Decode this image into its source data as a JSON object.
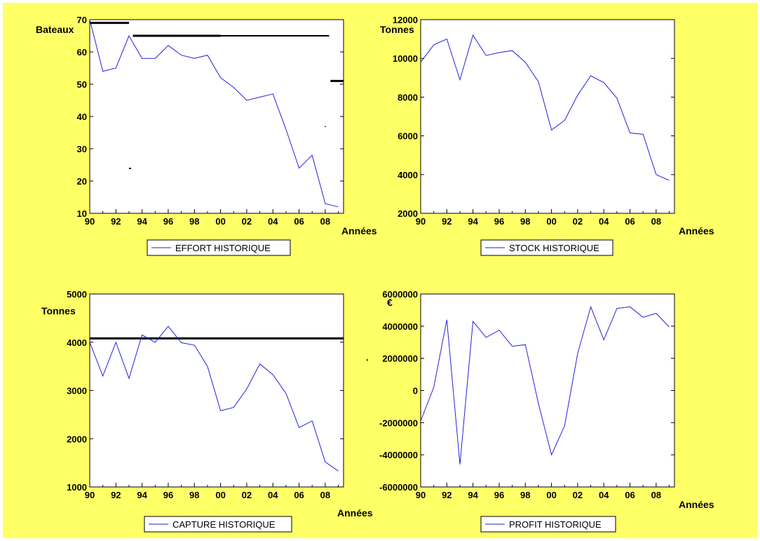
{
  "colors": {
    "background": "#ffff66",
    "plot_bg": "#ffffff",
    "series": "#2222dd",
    "frame": "#000000"
  },
  "chart_data": [
    {
      "type": "line",
      "x": [
        "1990",
        "1991",
        "1992",
        "1993",
        "1994",
        "1995",
        "1996",
        "1997",
        "1998",
        "1999",
        "2000",
        "2001",
        "2002",
        "2003",
        "2004",
        "2005",
        "2006",
        "2007",
        "2008",
        "2009"
      ],
      "xticks": [
        "90",
        "92",
        "94",
        "96",
        "98",
        "00",
        "02",
        "04",
        "06",
        "08"
      ],
      "series": [
        {
          "name": "EFFORT HISTORIQUE",
          "values": [
            70,
            54,
            55,
            65,
            58,
            58,
            62,
            59,
            58,
            59,
            52,
            49,
            45,
            46,
            47,
            36,
            24,
            28,
            13,
            12
          ]
        }
      ],
      "ylabel": "Bateaux",
      "xlabel": "Années",
      "ylim": [
        10,
        70
      ],
      "yticks": [
        "10",
        "20",
        "30",
        "40",
        "50",
        "60",
        "70"
      ],
      "legend": "bottom",
      "grid": false,
      "artifacts": [
        {
          "y": 69,
          "x0": 1990,
          "x1": 1993,
          "w": 3
        },
        {
          "y": 65,
          "x0": 1993.3,
          "x1": 2008.3,
          "w": 2
        },
        {
          "y": 65,
          "x0": 1993.3,
          "x1": 2000,
          "w": 3
        },
        {
          "y": 51,
          "x0": 2008.4,
          "x1": 2009.4,
          "w": 3
        }
      ]
    },
    {
      "type": "line",
      "x": [
        "1990",
        "1991",
        "1992",
        "1993",
        "1994",
        "1995",
        "1996",
        "1997",
        "1998",
        "1999",
        "2000",
        "2001",
        "2002",
        "2003",
        "2004",
        "2005",
        "2006",
        "2007",
        "2008",
        "2009"
      ],
      "xticks": [
        "90",
        "92",
        "94",
        "96",
        "98",
        "00",
        "02",
        "04",
        "06",
        "08"
      ],
      "series": [
        {
          "name": "STOCK HISTORIQUE",
          "values": [
            9800,
            10700,
            11000,
            8900,
            11200,
            10150,
            10300,
            10400,
            9800,
            8800,
            6300,
            6800,
            8100,
            9100,
            8750,
            7950,
            6150,
            6080,
            4000,
            3700
          ]
        }
      ],
      "ylabel": "Tonnes",
      "xlabel": "Années",
      "ylim": [
        2000,
        12000
      ],
      "yticks": [
        "2000",
        "4000",
        "6000",
        "8000",
        "10000",
        "12000"
      ],
      "legend": "bottom",
      "grid": false,
      "artifacts": []
    },
    {
      "type": "line",
      "x": [
        "1990",
        "1991",
        "1992",
        "1993",
        "1994",
        "1995",
        "1996",
        "1997",
        "1998",
        "1999",
        "2000",
        "2001",
        "2002",
        "2003",
        "2004",
        "2005",
        "2006",
        "2007",
        "2008",
        "2009"
      ],
      "xticks": [
        "90",
        "92",
        "94",
        "96",
        "98",
        "00",
        "02",
        "04",
        "06",
        "08"
      ],
      "series": [
        {
          "name": "CAPTURE HISTORIQUE",
          "values": [
            4000,
            3300,
            4000,
            3250,
            4150,
            4000,
            4330,
            3990,
            3940,
            3500,
            2580,
            2650,
            3030,
            3550,
            3330,
            2940,
            2230,
            2370,
            1520,
            1330
          ]
        }
      ],
      "ylabel": "Tonnes",
      "xlabel": "Années",
      "ylim": [
        1000,
        5000
      ],
      "yticks": [
        "1000",
        "2000",
        "3000",
        "4000",
        "5000"
      ],
      "legend": "bottom",
      "grid": false,
      "artifacts": [
        {
          "y": 4080,
          "x0": 1990,
          "x1": 2009.4,
          "w": 3
        }
      ]
    },
    {
      "type": "line",
      "x": [
        "1990",
        "1991",
        "1992",
        "1993",
        "1994",
        "1995",
        "1996",
        "1997",
        "1998",
        "1999",
        "2000",
        "2001",
        "2002",
        "2003",
        "2004",
        "2005",
        "2006",
        "2007",
        "2008",
        "2009"
      ],
      "xticks": [
        "90",
        "92",
        "94",
        "96",
        "98",
        "00",
        "02",
        "04",
        "06",
        "08"
      ],
      "series": [
        {
          "name": "PROFIT HISTORIQUE",
          "values": [
            -1900000,
            200000,
            4400000,
            -4600000,
            4300000,
            3300000,
            3750000,
            2750000,
            2850000,
            -800000,
            -4000000,
            -2200000,
            2300000,
            5200000,
            3150000,
            5100000,
            5200000,
            4550000,
            4800000,
            3950000
          ]
        }
      ],
      "ylabel": "€",
      "xlabel": "Années",
      "ylim": [
        -6000000,
        6000000
      ],
      "yticks": [
        "-6000000",
        "-4000000",
        "-2000000",
        "0",
        "2000000",
        "4000000",
        "6000000"
      ],
      "legend": "bottom",
      "grid": false,
      "artifacts": []
    }
  ]
}
